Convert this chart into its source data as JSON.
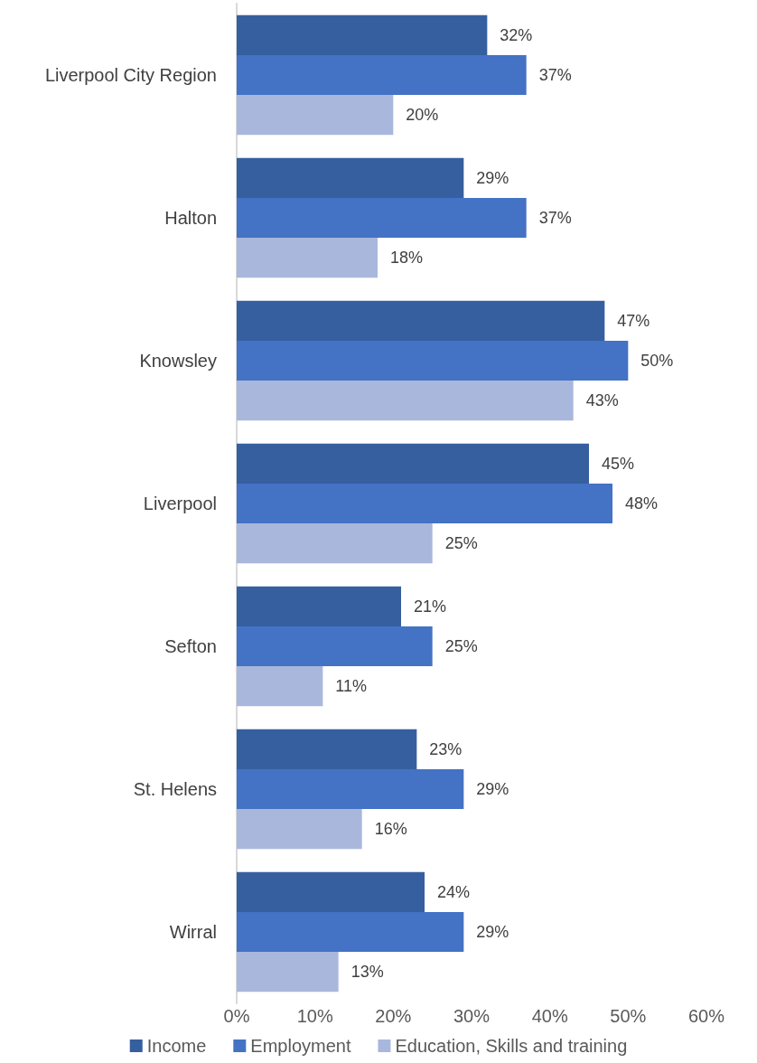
{
  "chart_data": {
    "type": "bar",
    "orientation": "horizontal",
    "categories": [
      "Liverpool City Region",
      "Halton",
      "Knowsley",
      "Liverpool",
      "Sefton",
      "St. Helens",
      "Wirral"
    ],
    "series": [
      {
        "name": "Income",
        "color": "#365f9f",
        "values": [
          32,
          29,
          47,
          45,
          21,
          23,
          24
        ],
        "value_labels": [
          "32%",
          "29%",
          "47%",
          "45%",
          "21%",
          "23%",
          "24%"
        ]
      },
      {
        "name": "Employment",
        "color": "#4472c4",
        "values": [
          37,
          37,
          50,
          48,
          25,
          29,
          29
        ],
        "value_labels": [
          "37%",
          "37%",
          "50%",
          "48%",
          "25%",
          "29%",
          "29%"
        ]
      },
      {
        "name": "Education, Skills and training",
        "color": "#a9b7dc",
        "values": [
          20,
          18,
          43,
          25,
          11,
          16,
          13
        ],
        "value_labels": [
          "20%",
          "18%",
          "43%",
          "25%",
          "11%",
          "16%",
          "13%"
        ]
      }
    ],
    "xlim": [
      0,
      60
    ],
    "xticks": [
      {
        "value": 0,
        "label": "0%"
      },
      {
        "value": 10,
        "label": "10%"
      },
      {
        "value": 20,
        "label": "20%"
      },
      {
        "value": 30,
        "label": "30%"
      },
      {
        "value": 40,
        "label": "40%"
      },
      {
        "value": 50,
        "label": "50%"
      },
      {
        "value": 60,
        "label": "60%"
      }
    ],
    "grid": false,
    "legend": "bottom"
  }
}
